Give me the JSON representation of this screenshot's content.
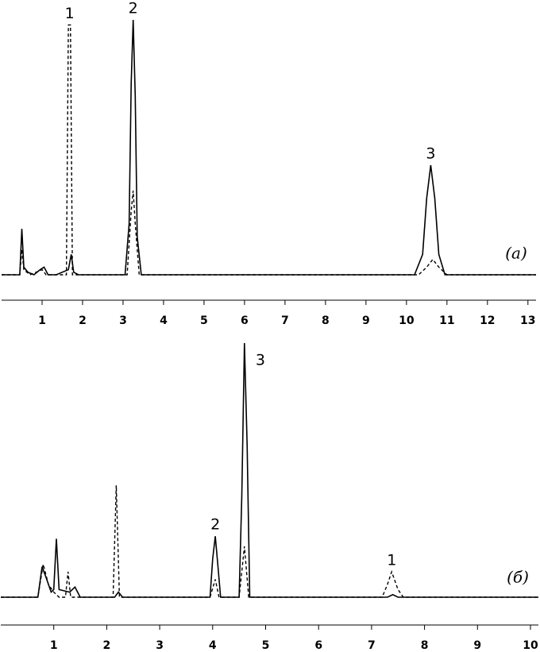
{
  "chart_data": [
    {
      "type": "line",
      "panel_label": "(a)",
      "xlim": [
        0,
        13.2
      ],
      "ylim": [
        0,
        100
      ],
      "xticks": [
        1,
        2,
        3,
        4,
        5,
        6,
        7,
        8,
        9,
        10,
        11,
        12,
        13
      ],
      "series": [
        {
          "style": "solid",
          "color": "#000000",
          "x": [
            0,
            0.45,
            0.5,
            0.55,
            0.65,
            0.8,
            0.95,
            1.05,
            1.15,
            1.35,
            1.65,
            1.72,
            1.78,
            1.9,
            3.05,
            3.15,
            3.2,
            3.25,
            3.3,
            3.35,
            3.45,
            10.2,
            10.4,
            10.5,
            10.6,
            10.7,
            10.8,
            10.95,
            13.2
          ],
          "values": [
            0,
            0,
            18,
            3,
            1,
            0,
            2,
            3,
            0,
            0,
            2,
            8,
            1,
            0,
            0,
            20,
            75,
            100,
            70,
            15,
            0,
            0,
            8,
            30,
            43,
            30,
            8,
            0,
            0
          ]
        },
        {
          "style": "dashed",
          "color": "#000000",
          "x": [
            0,
            0.45,
            0.5,
            0.55,
            0.7,
            1.0,
            1.1,
            1.6,
            1.65,
            1.7,
            1.75,
            3.1,
            3.2,
            3.25,
            3.3,
            3.4,
            10.3,
            10.5,
            10.65,
            10.8,
            11.0,
            13.2
          ],
          "values": [
            0,
            0,
            10,
            2,
            0,
            2,
            0,
            0,
            98,
            98,
            0,
            0,
            25,
            33,
            20,
            0,
            0,
            3,
            6,
            3,
            0,
            0
          ]
        }
      ],
      "annotations": [
        {
          "text": "1",
          "x": 1.68,
          "y": 98
        },
        {
          "text": "2",
          "x": 3.25,
          "y": 100
        },
        {
          "text": "3",
          "x": 10.6,
          "y": 43
        }
      ]
    },
    {
      "type": "line",
      "panel_label": "(б)",
      "xlim": [
        0,
        10.15
      ],
      "ylim": [
        0,
        100
      ],
      "xticks": [
        1,
        2,
        3,
        4,
        5,
        6,
        7,
        8,
        9,
        10
      ],
      "series": [
        {
          "style": "solid",
          "color": "#000000",
          "x": [
            0,
            0.7,
            0.78,
            0.85,
            0.95,
            1.0,
            1.05,
            1.1,
            1.3,
            1.4,
            1.5,
            2.15,
            2.22,
            2.3,
            3.95,
            4.0,
            4.05,
            4.1,
            4.15,
            4.5,
            4.55,
            4.6,
            4.65,
            4.7,
            7.3,
            7.4,
            7.5,
            10.15
          ],
          "values": [
            0,
            0,
            12,
            8,
            2,
            3,
            23,
            3,
            2,
            4,
            0,
            0,
            2,
            0,
            0,
            15,
            24,
            12,
            0,
            0,
            40,
            100,
            60,
            0,
            0,
            1,
            0,
            0
          ]
        },
        {
          "style": "dashed",
          "color": "#000000",
          "x": [
            0,
            0.7,
            0.8,
            0.9,
            1.0,
            1.1,
            1.22,
            1.27,
            1.32,
            2.12,
            2.18,
            2.24,
            3.95,
            4.05,
            4.12,
            4.5,
            4.6,
            4.68,
            7.2,
            7.3,
            7.38,
            7.5,
            7.6,
            10.15
          ],
          "values": [
            0,
            0,
            13,
            5,
            2,
            0,
            0,
            10,
            0,
            0,
            44,
            0,
            0,
            7,
            0,
            0,
            20,
            0,
            0,
            5,
            10,
            3,
            0,
            0
          ]
        }
      ],
      "annotations": [
        {
          "text": "2",
          "x": 4.05,
          "y": 24
        },
        {
          "text": "3",
          "x": 4.6,
          "y": 100,
          "side": "right"
        },
        {
          "text": "1",
          "x": 7.38,
          "y": 10
        }
      ]
    }
  ]
}
